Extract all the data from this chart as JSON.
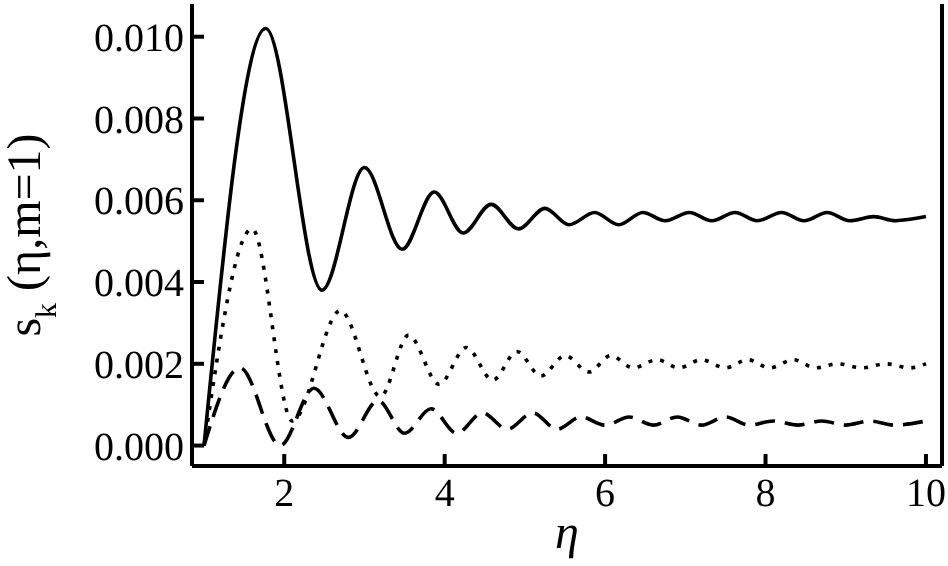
{
  "chart_data": {
    "type": "line",
    "xlabel": "η",
    "ylabel": "s$_{k}$ (η,m=1)",
    "xlim": [
      0.85,
      10.2
    ],
    "xticks": [
      2,
      4,
      6,
      8,
      10
    ],
    "ylim": [
      -0.0005,
      0.0108
    ],
    "yticks": [
      {
        "value": 0,
        "label": "0.000"
      },
      {
        "value": 0.002,
        "label": "0.002"
      },
      {
        "value": 0.004,
        "label": "0.004"
      },
      {
        "value": 0.006,
        "label": "0.006"
      },
      {
        "value": 0.008,
        "label": "0.008"
      },
      {
        "value": 0.01,
        "label": "0.010"
      }
    ],
    "grid": false,
    "legend": false,
    "marker": "none",
    "series": [
      {
        "color": "#000000",
        "line_style": "solid",
        "x": [
          1,
          1.77,
          2.47,
          3.0,
          3.47,
          3.87,
          4.23,
          4.58,
          4.92,
          5.25,
          5.55,
          5.87,
          6.17,
          6.47,
          6.75,
          7.05,
          7.33,
          7.62,
          7.9,
          8.2,
          8.48,
          8.77,
          9.05,
          9.35,
          9.62,
          10
        ],
        "values": [
          0,
          0.0102,
          0.0038,
          0.0068,
          0.0048,
          0.0062,
          0.0052,
          0.0059,
          0.0053,
          0.0058,
          0.0054,
          0.0057,
          0.0054,
          0.0057,
          0.0055,
          0.0057,
          0.0055,
          0.0057,
          0.0055,
          0.0057,
          0.0055,
          0.0057,
          0.0055,
          0.0056,
          0.0055,
          0.0056
        ]
      },
      {
        "color": "#000000",
        "line_style": "dotted",
        "x": [
          1,
          1.6,
          2.1,
          2.7,
          3.2,
          3.55,
          3.93,
          4.27,
          4.6,
          4.9,
          5.2,
          5.5,
          5.8,
          6.07,
          6.35,
          6.65,
          6.92,
          7.2,
          7.5,
          7.78,
          8.05,
          8.35,
          8.62,
          8.9,
          9.2,
          9.5,
          9.8,
          10
        ],
        "values": [
          0,
          0.0053,
          0.0006,
          0.0033,
          0.0012,
          0.0027,
          0.0015,
          0.0024,
          0.0016,
          0.0023,
          0.0017,
          0.0022,
          0.0018,
          0.0022,
          0.0019,
          0.0021,
          0.0019,
          0.0021,
          0.0019,
          0.0021,
          0.0019,
          0.0021,
          0.0019,
          0.002,
          0.0019,
          0.002,
          0.0019,
          0.002
        ]
      },
      {
        "color": "#000000",
        "line_style": "dashed",
        "x": [
          1,
          1.45,
          1.95,
          2.37,
          2.8,
          3.17,
          3.5,
          3.83,
          4.15,
          4.47,
          4.78,
          5.1,
          5.4,
          5.7,
          6.0,
          6.3,
          6.6,
          6.9,
          7.2,
          7.5,
          7.8,
          8.1,
          8.4,
          8.7,
          9.0,
          9.3,
          9.6,
          10
        ],
        "values": [
          0,
          0.0019,
          0,
          0.0014,
          0.0002,
          0.0011,
          0.0003,
          0.0009,
          0.0003,
          0.0008,
          0.0004,
          0.0008,
          0.0004,
          0.0007,
          0.0005,
          0.0007,
          0.0005,
          0.0007,
          0.0005,
          0.0007,
          0.0005,
          0.0006,
          0.0005,
          0.0006,
          0.0005,
          0.0006,
          0.0005,
          0.0006
        ]
      }
    ]
  }
}
